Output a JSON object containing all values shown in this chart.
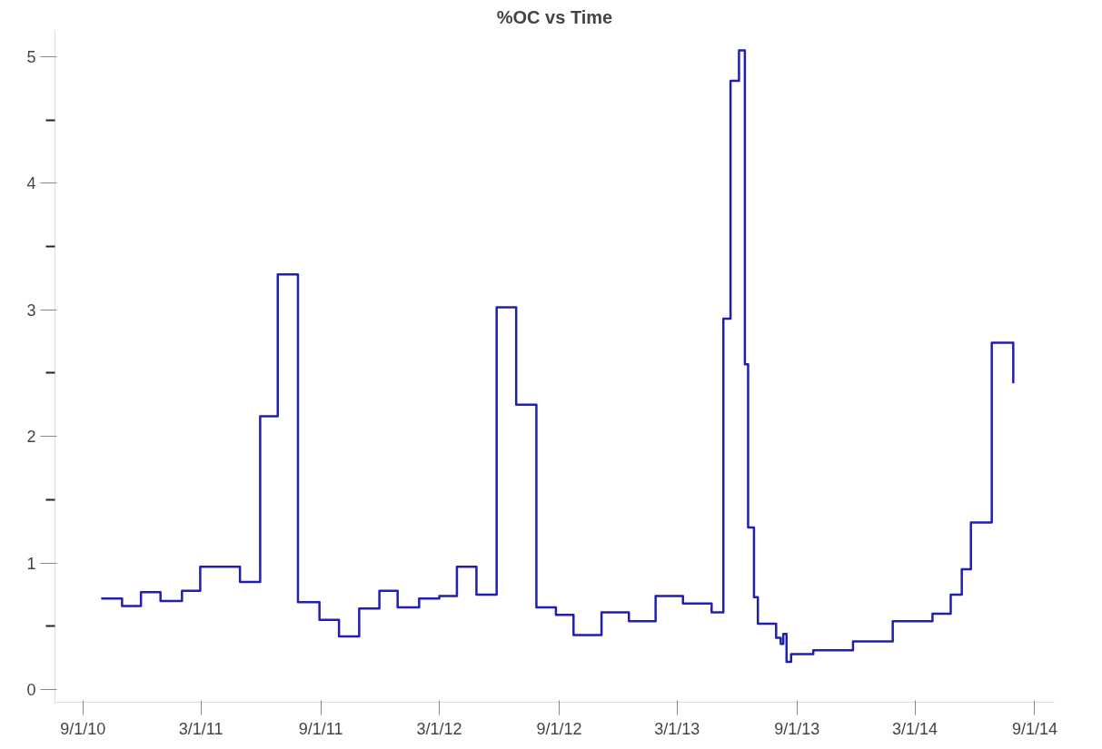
{
  "chart_data": {
    "type": "step",
    "title": "%OC vs Time",
    "x": [
      "2010-09-29",
      "2010-10-31",
      "2010-11-29",
      "2010-12-29",
      "2011-01-31",
      "2011-02-28",
      "2011-04-30",
      "2011-05-31",
      "2011-06-27",
      "2011-07-28",
      "2011-08-30",
      "2011-09-29",
      "2011-10-30",
      "2011-11-30",
      "2011-12-28",
      "2012-01-30",
      "2012-03-01",
      "2012-03-28",
      "2012-04-27",
      "2012-05-28",
      "2012-06-27",
      "2012-07-28",
      "2012-08-27",
      "2012-09-23",
      "2012-11-05",
      "2012-12-17",
      "2013-01-27",
      "2013-03-10",
      "2013-04-23",
      "2013-05-11",
      "2013-05-22",
      "2013-06-04",
      "2013-06-13",
      "2013-06-18",
      "2013-06-27",
      "2013-07-03",
      "2013-07-31",
      "2013-08-07",
      "2013-08-11",
      "2013-08-16",
      "2013-08-23",
      "2013-09-26",
      "2013-11-26",
      "2014-01-26",
      "2014-03-28",
      "2014-04-25",
      "2014-05-12",
      "2014-05-26",
      "2014-06-27",
      "2014-07-30"
    ],
    "series": [
      {
        "color": "#1f1fb4",
        "values": [
          0.72,
          0.66,
          0.77,
          0.7,
          0.78,
          0.97,
          0.85,
          2.16,
          3.28,
          0.69,
          0.55,
          0.42,
          0.64,
          0.78,
          0.65,
          0.72,
          0.74,
          0.97,
          0.75,
          3.02,
          2.25,
          0.65,
          0.59,
          0.43,
          0.61,
          0.54,
          0.74,
          0.68,
          0.61,
          2.93,
          4.81,
          5.05,
          2.57,
          1.28,
          0.73,
          0.52,
          0.41,
          0.36,
          0.44,
          0.22,
          0.28,
          0.31,
          0.38,
          0.54,
          0.6,
          0.75,
          0.95,
          1.32,
          2.74,
          2.42
        ]
      }
    ],
    "xlim": [
      "2010-07-20",
      "2014-10-01"
    ],
    "xticks": [
      {
        "value": "2010-09-01",
        "label": "9/1/10"
      },
      {
        "value": "2011-03-01",
        "label": "3/1/11"
      },
      {
        "value": "2011-09-01",
        "label": "9/1/11"
      },
      {
        "value": "2012-03-01",
        "label": "3/1/12"
      },
      {
        "value": "2012-09-01",
        "label": "9/1/12"
      },
      {
        "value": "2013-03-01",
        "label": "3/1/13"
      },
      {
        "value": "2013-09-01",
        "label": "9/1/13"
      },
      {
        "value": "2014-03-01",
        "label": "3/1/14"
      },
      {
        "value": "2014-09-01",
        "label": "9/1/14"
      }
    ],
    "ylim": [
      -0.1,
      5.2
    ],
    "yticks": [
      0,
      {
        "value": 0.5,
        "label": null
      },
      1,
      {
        "value": 1.5,
        "label": null
      },
      2,
      {
        "value": 2.5,
        "label": null
      },
      3,
      {
        "value": 3.5,
        "label": null
      },
      4,
      {
        "value": 4.5,
        "label": null
      },
      5
    ],
    "grid": false
  }
}
